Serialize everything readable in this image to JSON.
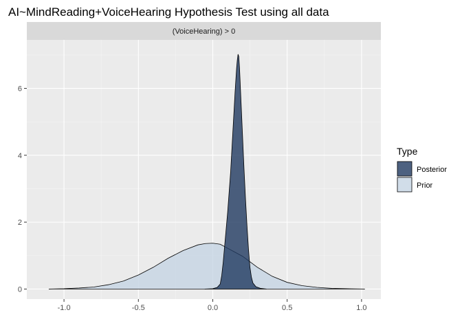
{
  "chart_data": {
    "type": "area",
    "title": "AI~MindReading+VoiceHearing Hypothesis Test using all data",
    "facet_label": "(VoiceHearing) > 0",
    "xlabel": "",
    "ylabel": "",
    "xlim": [
      -1.25,
      1.13
    ],
    "ylim": [
      -0.3,
      7.45
    ],
    "x_ticks": [
      -1.0,
      -0.5,
      0.0,
      0.5,
      1.0
    ],
    "x_tick_labels": [
      "-1.0",
      "-0.5",
      "0.0",
      "0.5",
      "1.0"
    ],
    "y_ticks": [
      0,
      2,
      4,
      6
    ],
    "y_tick_labels": [
      "0",
      "2",
      "4",
      "6"
    ],
    "grid": true,
    "legend": {
      "title": "Type",
      "position": "right"
    },
    "series": [
      {
        "name": "Posterior",
        "color": "#203a60",
        "opacity": 0.8,
        "points": [
          [
            -0.05,
            0.0
          ],
          [
            0.0,
            0.01
          ],
          [
            0.03,
            0.05
          ],
          [
            0.05,
            0.15
          ],
          [
            0.06,
            0.4
          ],
          [
            0.07,
            0.8
          ],
          [
            0.08,
            1.3
          ],
          [
            0.09,
            1.8
          ],
          [
            0.1,
            2.3
          ],
          [
            0.11,
            2.9
          ],
          [
            0.12,
            3.5
          ],
          [
            0.13,
            4.3
          ],
          [
            0.14,
            5.1
          ],
          [
            0.15,
            5.9
          ],
          [
            0.16,
            6.6
          ],
          [
            0.165,
            6.85
          ],
          [
            0.17,
            7.02
          ],
          [
            0.175,
            6.95
          ],
          [
            0.18,
            6.6
          ],
          [
            0.19,
            5.6
          ],
          [
            0.2,
            4.6
          ],
          [
            0.21,
            3.6
          ],
          [
            0.22,
            2.7
          ],
          [
            0.23,
            1.9
          ],
          [
            0.24,
            1.2
          ],
          [
            0.25,
            0.65
          ],
          [
            0.26,
            0.35
          ],
          [
            0.27,
            0.18
          ],
          [
            0.29,
            0.07
          ],
          [
            0.32,
            0.02
          ],
          [
            0.36,
            0.0
          ]
        ]
      },
      {
        "name": "Prior",
        "color": "#c6d5e3",
        "opacity": 0.8,
        "points": [
          [
            -1.1,
            0.0
          ],
          [
            -1.0,
            0.01
          ],
          [
            -0.9,
            0.03
          ],
          [
            -0.8,
            0.06
          ],
          [
            -0.7,
            0.13
          ],
          [
            -0.6,
            0.24
          ],
          [
            -0.5,
            0.42
          ],
          [
            -0.4,
            0.65
          ],
          [
            -0.3,
            0.92
          ],
          [
            -0.2,
            1.15
          ],
          [
            -0.1,
            1.32
          ],
          [
            -0.05,
            1.36
          ],
          [
            0.0,
            1.37
          ],
          [
            0.05,
            1.34
          ],
          [
            0.1,
            1.22
          ],
          [
            0.2,
            0.98
          ],
          [
            0.3,
            0.65
          ],
          [
            0.4,
            0.38
          ],
          [
            0.5,
            0.2
          ],
          [
            0.6,
            0.1
          ],
          [
            0.7,
            0.05
          ],
          [
            0.8,
            0.02
          ],
          [
            0.9,
            0.01
          ],
          [
            1.02,
            0.0
          ]
        ]
      }
    ]
  }
}
